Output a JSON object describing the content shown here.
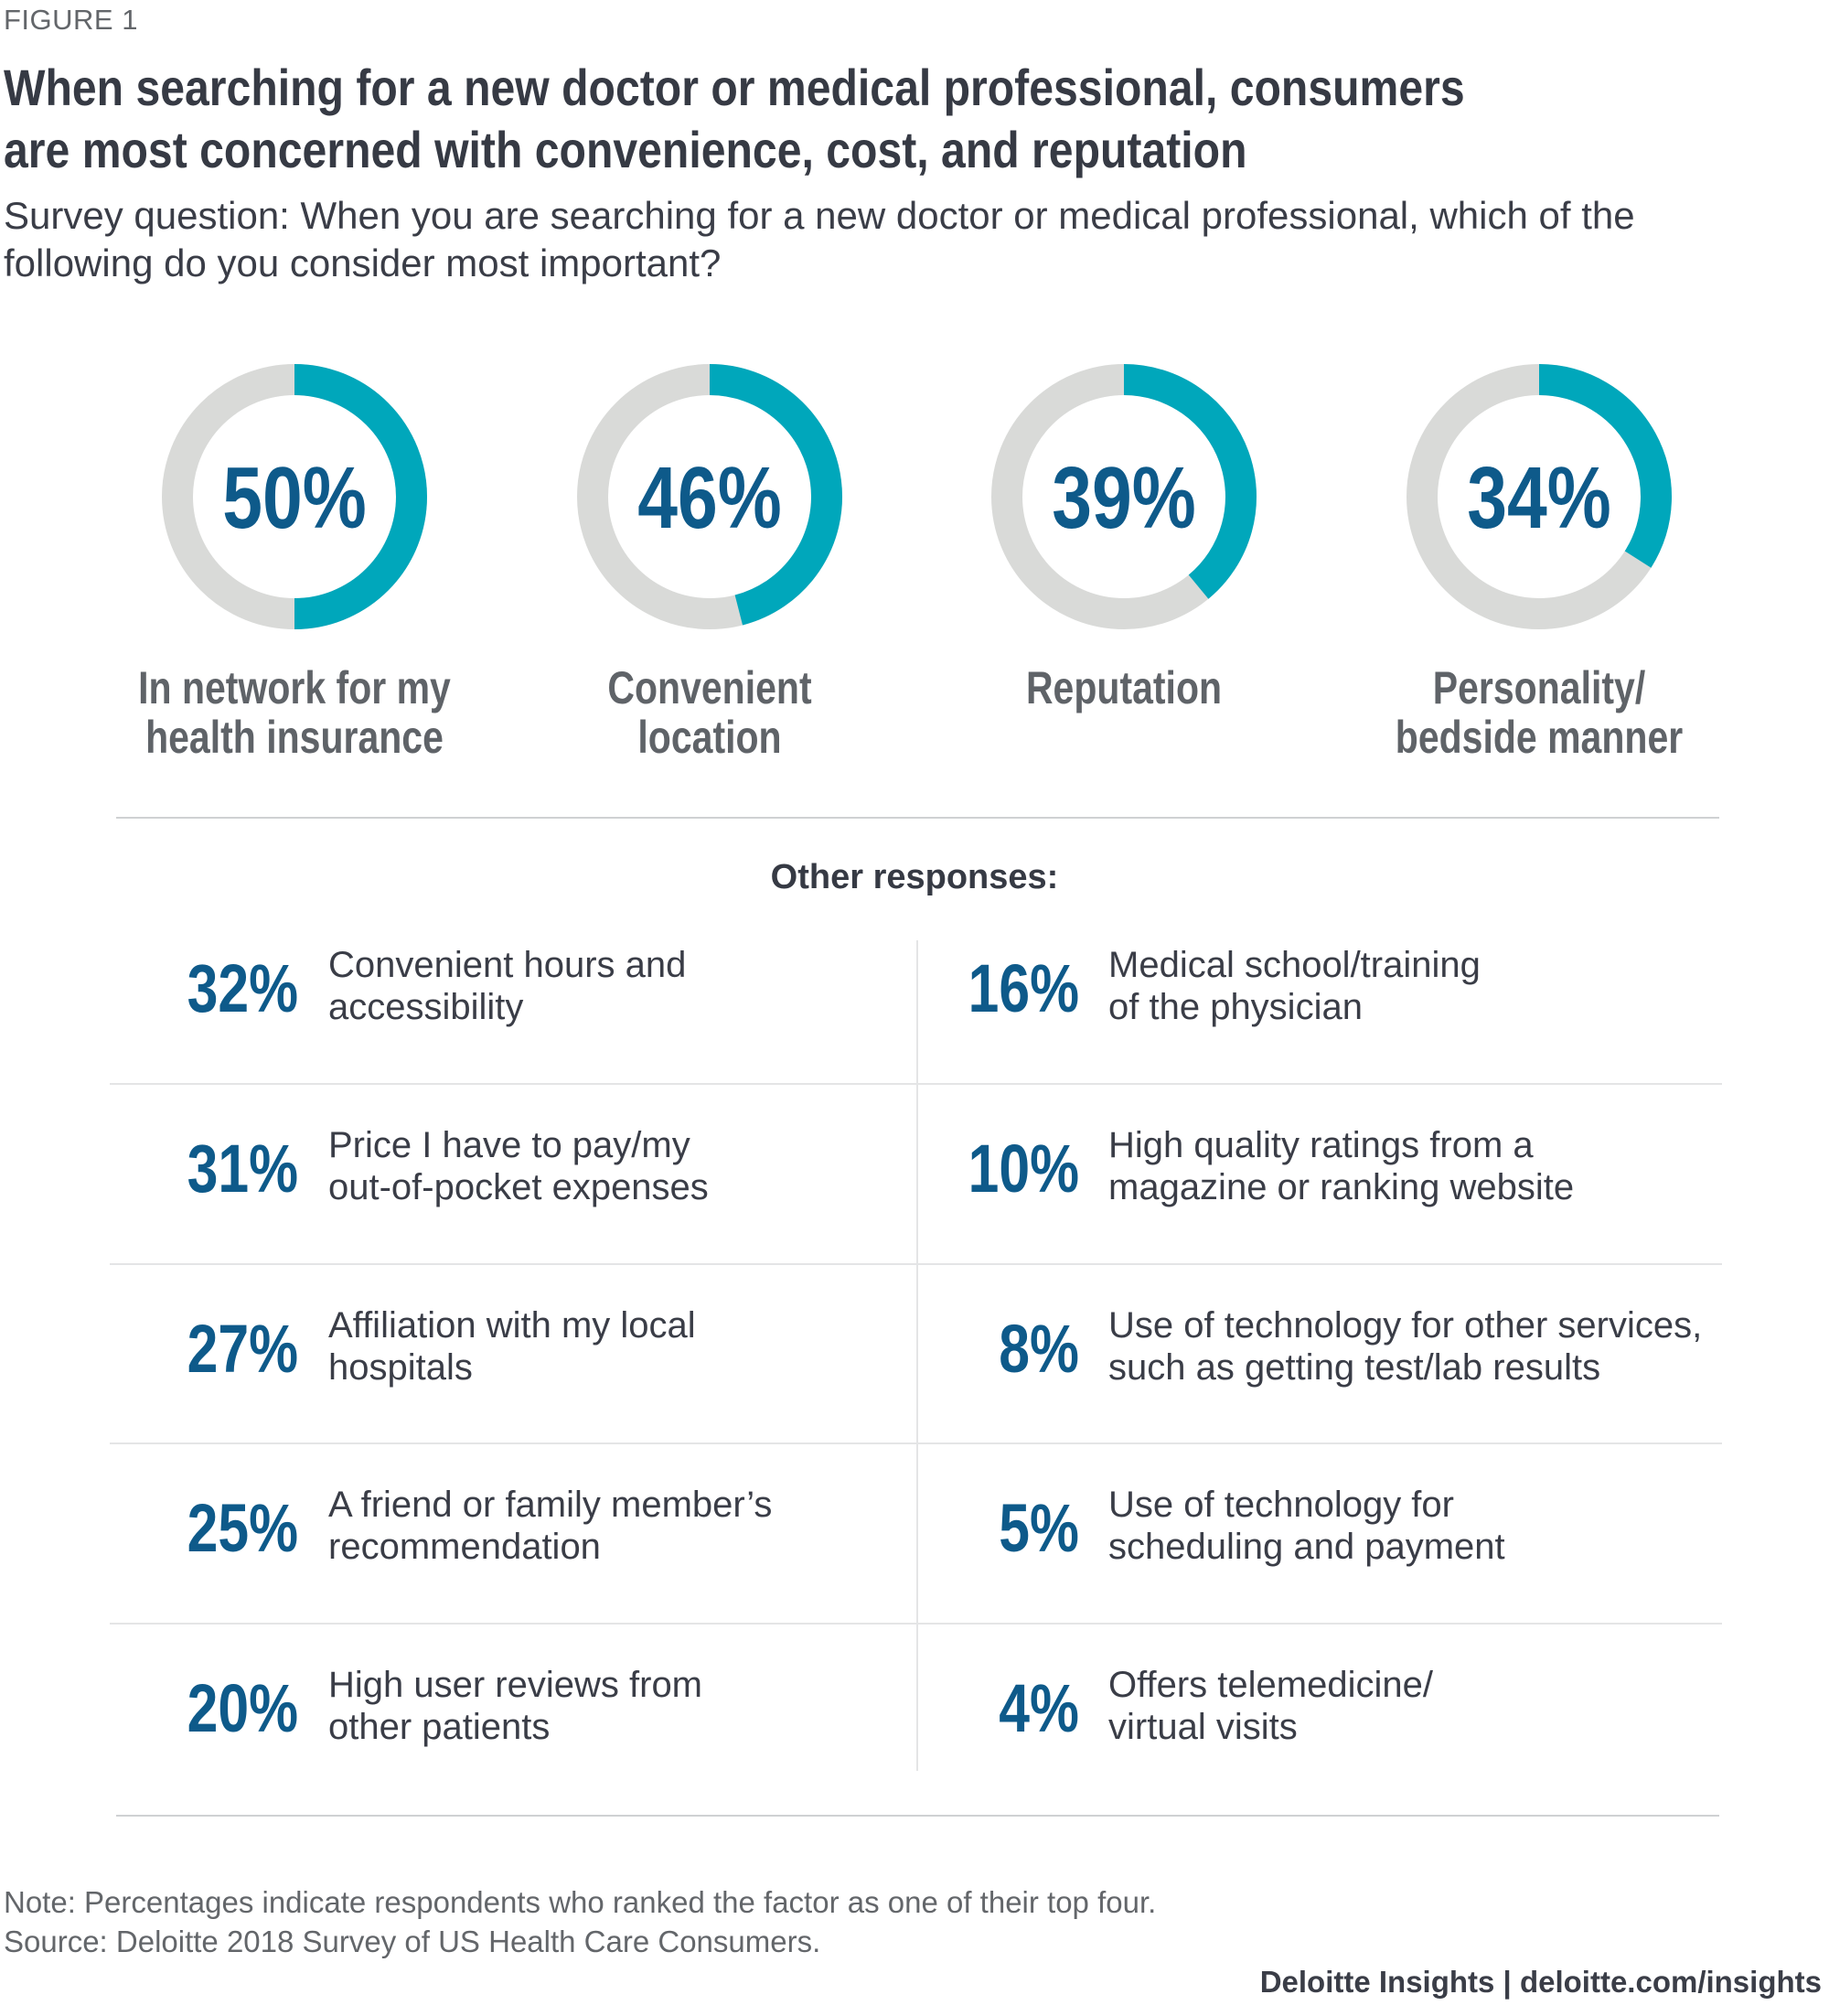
{
  "figure_label": "FIGURE 1",
  "title": "When searching for a new doctor or medical professional, consumers are most concerned with convenience, cost, and reputation",
  "subtitle": "Survey question: When you are searching for a new doctor or medical professional, which of the following do you consider most important?",
  "colors": {
    "accent": "#00a7bb",
    "track": "#d9dad8",
    "value_text": "#0e5a8a",
    "label_text": "#5f6368"
  },
  "chart_data": {
    "type": "pie",
    "title": "When searching for a new doctor or medical professional, consumers are most concerned with convenience, cost, and reputation",
    "subtitle": "Survey question: When you are searching for a new doctor or medical professional, which of the following do you consider most important?",
    "unit": "percent of respondents",
    "donuts": [
      {
        "label": "In network for my health insurance",
        "label_lines": [
          "In network for my",
          "health insurance"
        ],
        "value": 50,
        "display": "50%"
      },
      {
        "label": "Convenient location",
        "label_lines": [
          "Convenient",
          "location"
        ],
        "value": 46,
        "display": "46%"
      },
      {
        "label": "Reputation",
        "label_lines": [
          "Reputation",
          ""
        ],
        "value": 39,
        "display": "39%"
      },
      {
        "label": "Personality/bedside manner",
        "label_lines": [
          "Personality/",
          "bedside manner"
        ],
        "value": 34,
        "display": "34%"
      }
    ],
    "other_responses_heading": "Other responses:",
    "other_responses": [
      {
        "value": 32,
        "display": "32%",
        "label": "Convenient hours and\naccessibility"
      },
      {
        "value": 31,
        "display": "31%",
        "label": "Price I have to pay/my\nout-of-pocket expenses"
      },
      {
        "value": 27,
        "display": "27%",
        "label": "Affiliation with my local\nhospitals"
      },
      {
        "value": 25,
        "display": "25%",
        "label": "A friend or family member’s\nrecommendation"
      },
      {
        "value": 20,
        "display": "20%",
        "label": "High user reviews from\nother patients"
      },
      {
        "value": 16,
        "display": "16%",
        "label": "Medical school/training\nof the physician"
      },
      {
        "value": 10,
        "display": "10%",
        "label": "High quality ratings from a\nmagazine or ranking website"
      },
      {
        "value": 8,
        "display": "8%",
        "label": "Use of technology for other services,\nsuch as getting test/lab results"
      },
      {
        "value": 5,
        "display": "5%",
        "label": "Use of technology for\nscheduling and payment"
      },
      {
        "value": 4,
        "display": "4%",
        "label": "Offers telemedicine/\nvirtual visits"
      }
    ]
  },
  "note": "Note: Percentages indicate respondents who ranked the factor as one of their top four.\nSource: Deloitte 2018 Survey of US Health Care Consumers.",
  "brand": "Deloitte Insights | deloitte.com/insights"
}
